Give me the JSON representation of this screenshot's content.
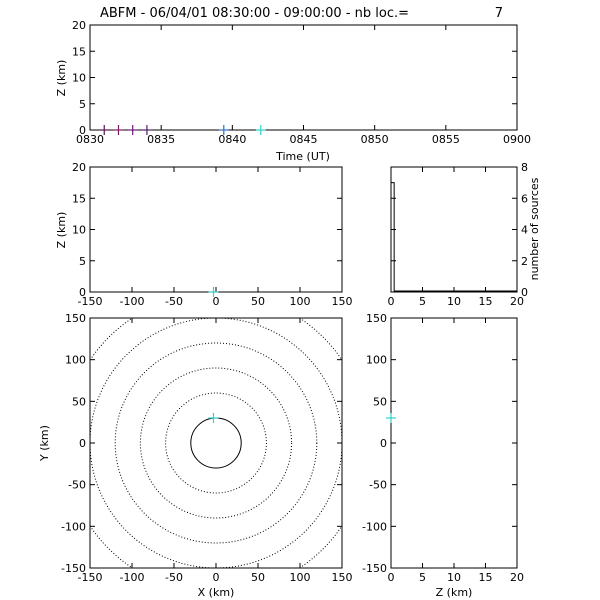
{
  "figure": {
    "title": "ABFM - 06/04/01 08:30:00 - 09:00:00 - nb loc.=",
    "count": "7"
  },
  "chart_data": [
    {
      "id": "time_height",
      "type": "scatter",
      "xlabel": "Time (UT)",
      "ylabel": "Z (km)",
      "x_ticks": [
        "0830",
        "0835",
        "0840",
        "0845",
        "0850",
        "0855",
        "0900"
      ],
      "y_ticks": [
        "0",
        "5",
        "10",
        "15",
        "20"
      ],
      "xlim": [
        0,
        30
      ],
      "ylim": [
        0,
        20
      ],
      "grid": false,
      "points": [
        {
          "x": 1.0,
          "y": 0,
          "color": "#5a1050"
        },
        {
          "x": 2.0,
          "y": 0,
          "color": "#7a1a60"
        },
        {
          "x": 3.0,
          "y": 0,
          "color": "#6a1a70"
        },
        {
          "x": 4.0,
          "y": 0,
          "color": "#502070"
        },
        {
          "x": 9.4,
          "y": 0,
          "color": "#3070c8"
        },
        {
          "x": 12.0,
          "y": 0,
          "color": "#30d0d0"
        }
      ]
    },
    {
      "id": "x_height",
      "type": "scatter",
      "xlabel": "",
      "ylabel": "Z (km)",
      "x_ticks": [
        "-150",
        "-100",
        "-50",
        "0",
        "50",
        "100",
        "150"
      ],
      "y_ticks": [
        "0",
        "5",
        "10",
        "15",
        "20"
      ],
      "xlim": [
        -150,
        150
      ],
      "ylim": [
        0,
        20
      ],
      "points": [
        {
          "x": -3,
          "y": 0,
          "color": "#30d0d0"
        }
      ]
    },
    {
      "id": "height_histogram",
      "type": "bar",
      "xlabel": "",
      "ylabel": "number of sources",
      "x_ticks": [
        "0",
        "5",
        "10",
        "15",
        "20"
      ],
      "y_ticks": [
        "0",
        "2",
        "4",
        "6",
        "8"
      ],
      "xlim": [
        0,
        20
      ],
      "ylim": [
        0,
        8
      ],
      "bins": [
        {
          "from": 0,
          "to": 0.5,
          "value": 7
        }
      ]
    },
    {
      "id": "plan_view",
      "type": "scatter",
      "xlabel": "X (km)",
      "ylabel": "Y (km)",
      "x_ticks": [
        "-150",
        "-100",
        "-50",
        "0",
        "50",
        "100",
        "150"
      ],
      "y_ticks": [
        "-150",
        "-100",
        "-50",
        "0",
        "50",
        "100",
        "150"
      ],
      "xlim": [
        -150,
        150
      ],
      "ylim": [
        -150,
        150
      ],
      "range_rings_km": [
        30,
        60,
        90,
        120,
        150,
        180
      ],
      "points": [
        {
          "x": -3,
          "y": 30,
          "color": "#30d0d0"
        }
      ]
    },
    {
      "id": "z_y",
      "type": "scatter",
      "xlabel": "Z (km)",
      "ylabel": "",
      "x_ticks": [
        "0",
        "5",
        "10",
        "15",
        "20"
      ],
      "y_ticks": [
        "-150",
        "-100",
        "-50",
        "0",
        "50",
        "100",
        "150"
      ],
      "xlim": [
        0,
        20
      ],
      "ylim": [
        -150,
        150
      ],
      "points": [
        {
          "x": 0,
          "y": 30,
          "color": "#30d0d0"
        }
      ]
    }
  ]
}
